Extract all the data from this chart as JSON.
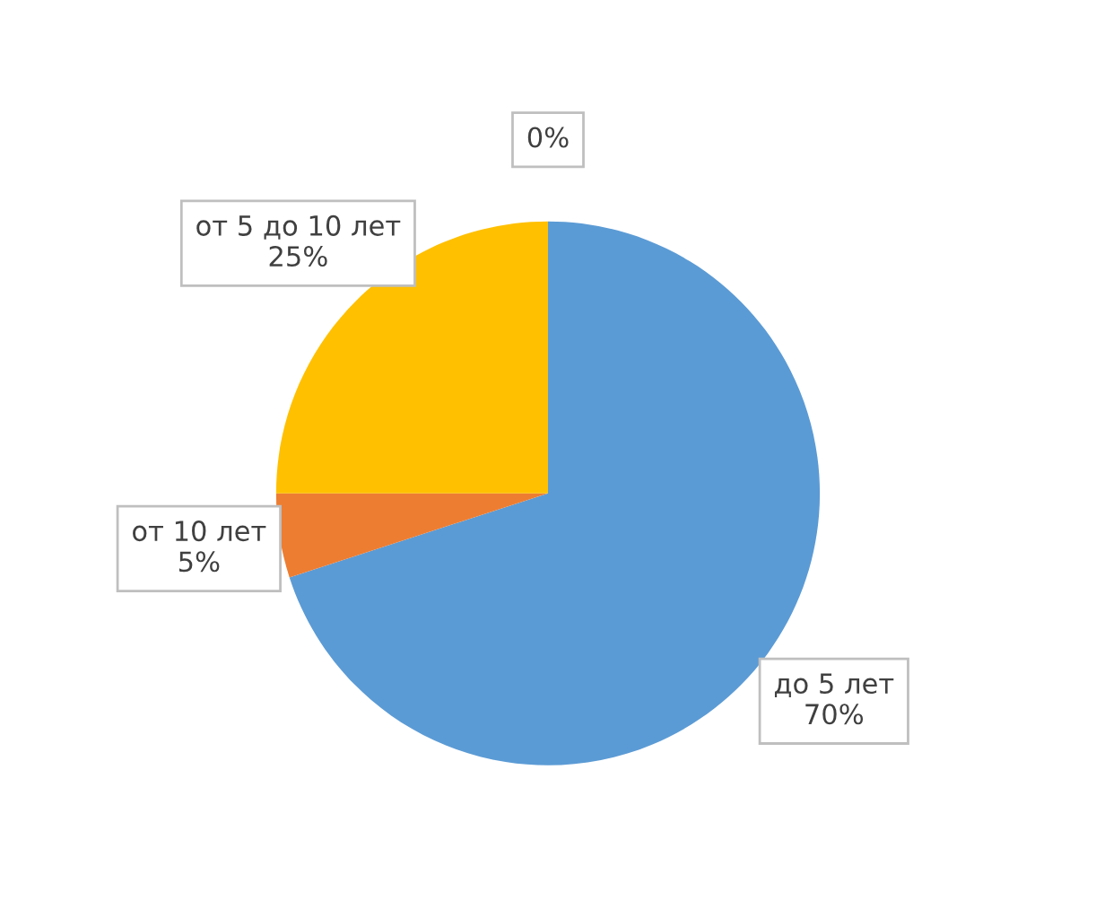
{
  "chart_data": {
    "type": "pie",
    "categories": [
      "до 5 лет",
      "от 10 лет",
      "от 5 до 10 лет",
      null
    ],
    "values": [
      70,
      5,
      25,
      0
    ],
    "value_labels": [
      "70%",
      "5%",
      "25%",
      "0%"
    ],
    "colors": [
      "#5b9bd5",
      "#ed7d31",
      "#ffc000",
      "#a5a5a5"
    ],
    "legend": false
  }
}
